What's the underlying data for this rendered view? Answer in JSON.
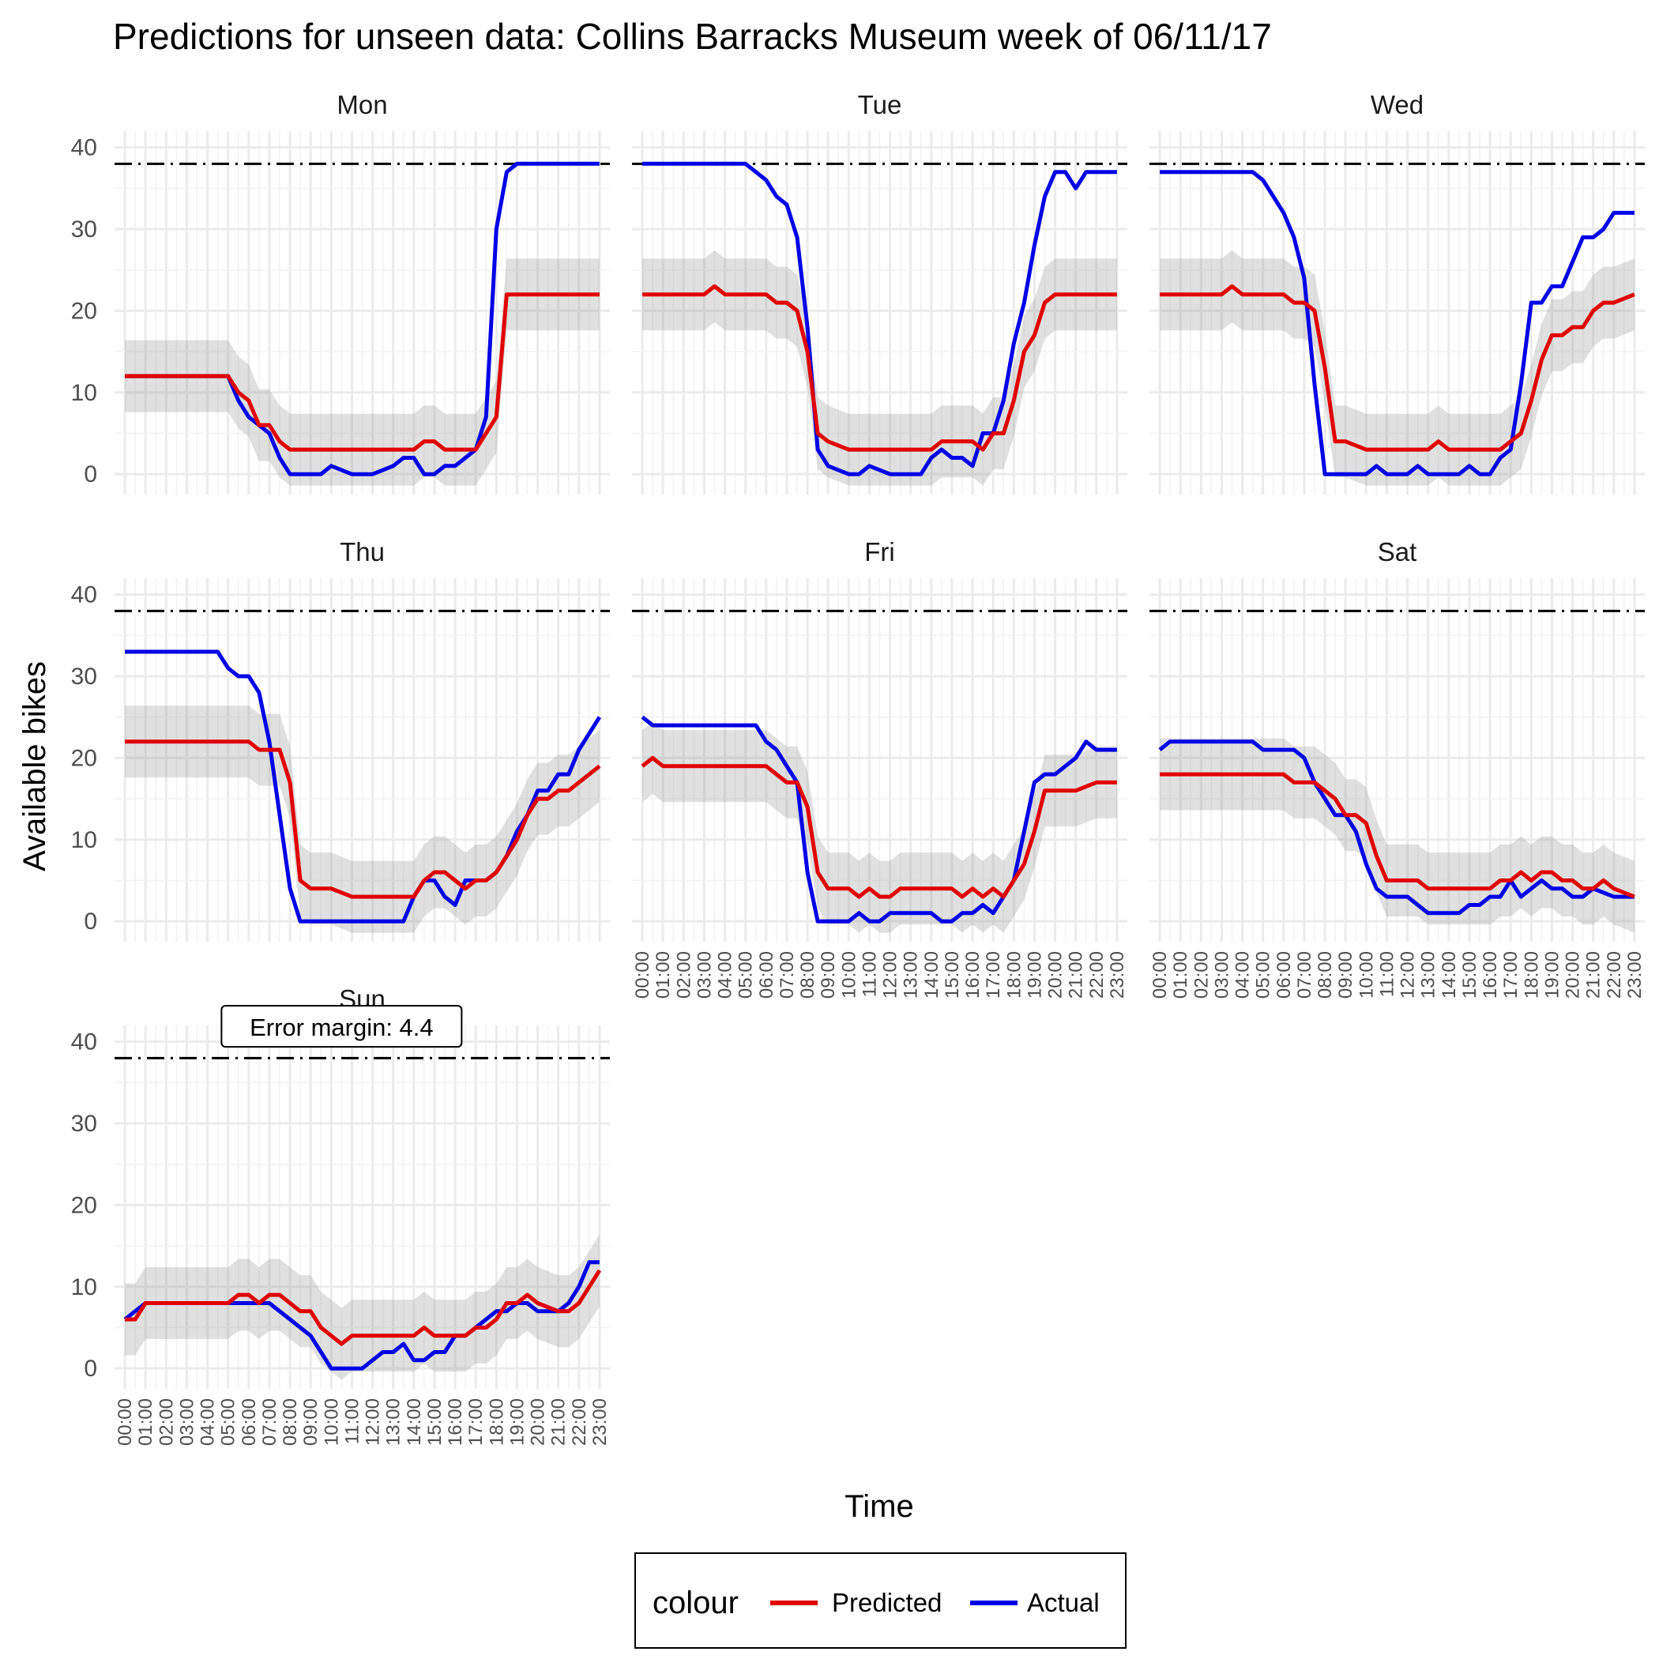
{
  "chart_data": {
    "type": "line",
    "title": "Predictions for unseen data: Collins Barracks Museum week of 06/11/17",
    "xlabel": "Time",
    "ylabel": "Available bikes",
    "ylim": [
      -2.5,
      42
    ],
    "yticks": [
      0,
      10,
      20,
      30,
      40
    ],
    "capacity": 38,
    "band_margin": 4.4,
    "grid": true,
    "legend": {
      "title": "colour",
      "position": "bottom",
      "items": [
        {
          "label": "Predicted",
          "color": "#e00000"
        },
        {
          "label": "Actual",
          "color": "#0000e6"
        }
      ]
    },
    "annotation": {
      "panel": "Sun",
      "text": "Error margin: 4.4"
    },
    "x_tick_labels": [
      "00:00",
      "01:00",
      "02:00",
      "03:00",
      "04:00",
      "05:00",
      "06:00",
      "07:00",
      "08:00",
      "09:00",
      "10:00",
      "11:00",
      "12:00",
      "13:00",
      "14:00",
      "15:00",
      "16:00",
      "17:00",
      "18:00",
      "19:00",
      "20:00",
      "21:00",
      "22:00",
      "23:00"
    ],
    "x_unit": "hour of day",
    "panels": [
      {
        "name": "Mon",
        "x_predicted": [
          0,
          5,
          5.5,
          6,
          6.5,
          7,
          7.5,
          8,
          9,
          10,
          11,
          12,
          13,
          14,
          14.5,
          15,
          15.5,
          16,
          17,
          18,
          18.5,
          19,
          20,
          21,
          22,
          23
        ],
        "predicted": [
          12,
          12,
          10,
          9,
          6,
          6,
          4,
          3,
          3,
          3,
          3,
          3,
          3,
          3,
          4,
          4,
          3,
          3,
          3,
          7,
          22,
          22,
          22,
          22,
          22,
          22
        ],
        "x_actual": [
          0,
          5,
          5.5,
          6,
          6.5,
          7,
          7.5,
          8,
          9,
          9.5,
          10,
          11,
          12,
          13,
          13.5,
          14,
          14.5,
          15,
          15.5,
          16,
          16.5,
          17,
          17.5,
          18,
          18.5,
          19,
          19.5,
          20,
          21,
          22,
          23
        ],
        "actual": [
          12,
          12,
          9,
          7,
          6,
          5,
          2,
          0,
          0,
          0,
          1,
          0,
          0,
          1,
          2,
          2,
          0,
          0,
          1,
          1,
          2,
          3,
          7,
          30,
          37,
          38,
          38,
          38,
          38,
          38,
          38
        ]
      },
      {
        "name": "Tue",
        "x_predicted": [
          0,
          3,
          3.5,
          4,
          5,
          6,
          6.5,
          7,
          7.5,
          8,
          8.5,
          9,
          10,
          11,
          12,
          13,
          14,
          14.5,
          15,
          16,
          16.5,
          17,
          17.5,
          18,
          18.5,
          19,
          19.5,
          20,
          21,
          22,
          23
        ],
        "predicted": [
          22,
          22,
          23,
          22,
          22,
          22,
          21,
          21,
          20,
          15,
          5,
          4,
          3,
          3,
          3,
          3,
          3,
          4,
          4,
          4,
          3,
          5,
          5,
          9,
          15,
          17,
          21,
          22,
          22,
          22,
          22
        ],
        "x_actual": [
          0,
          4,
          5,
          5.5,
          6,
          6.5,
          7,
          7.5,
          8,
          8.5,
          9,
          10,
          10.5,
          11,
          12,
          13,
          13.5,
          14,
          14.5,
          15,
          15.5,
          16,
          16.5,
          17,
          17.5,
          18,
          18.5,
          19,
          19.5,
          20,
          20.5,
          21,
          21.5,
          22,
          23
        ],
        "actual": [
          38,
          38,
          38,
          37,
          36,
          34,
          33,
          29,
          18,
          3,
          1,
          0,
          0,
          1,
          0,
          0,
          0,
          2,
          3,
          2,
          2,
          1,
          5,
          5,
          9,
          16,
          21,
          28,
          34,
          37,
          37,
          35,
          37,
          37,
          37
        ]
      },
      {
        "name": "Wed",
        "x_predicted": [
          0,
          3,
          3.5,
          4,
          5,
          6,
          6.5,
          7,
          7.5,
          8,
          8.5,
          9,
          10,
          10.5,
          11,
          12,
          13,
          13.5,
          14,
          15,
          16,
          16.5,
          17,
          17.5,
          18,
          18.5,
          19,
          19.5,
          20,
          20.5,
          21,
          21.5,
          22,
          23
        ],
        "predicted": [
          22,
          22,
          23,
          22,
          22,
          22,
          21,
          21,
          20,
          13,
          4,
          4,
          3,
          3,
          3,
          3,
          3,
          4,
          3,
          3,
          3,
          3,
          4,
          5,
          9,
          14,
          17,
          17,
          18,
          18,
          20,
          21,
          21,
          22
        ],
        "x_actual": [
          0,
          4,
          4.5,
          5,
          5.5,
          6,
          6.5,
          7,
          7.5,
          8,
          9,
          10,
          10.5,
          11,
          12,
          12.5,
          13,
          14,
          14.5,
          15,
          15.5,
          16,
          16.5,
          17,
          17.5,
          18,
          18.5,
          19,
          19.5,
          20,
          20.5,
          21,
          21.5,
          22,
          22.5,
          23
        ],
        "actual": [
          37,
          37,
          37,
          36,
          34,
          32,
          29,
          24,
          11,
          0,
          0,
          0,
          1,
          0,
          0,
          1,
          0,
          0,
          0,
          1,
          0,
          0,
          2,
          3,
          11,
          21,
          21,
          23,
          23,
          26,
          29,
          29,
          30,
          32,
          32,
          32
        ]
      },
      {
        "name": "Thu",
        "x_predicted": [
          0,
          5,
          6,
          6.5,
          7,
          7.5,
          8,
          8.5,
          9,
          10,
          11,
          12,
          13,
          13.5,
          14,
          14.5,
          15,
          15.5,
          16,
          16.5,
          17,
          17.5,
          18,
          18.5,
          19,
          19.5,
          20,
          20.5,
          21,
          21.5,
          22,
          22.5,
          23
        ],
        "predicted": [
          22,
          22,
          22,
          21,
          21,
          21,
          17,
          5,
          4,
          4,
          3,
          3,
          3,
          3,
          3,
          5,
          6,
          6,
          5,
          4,
          5,
          5,
          6,
          8,
          10,
          13,
          15,
          15,
          16,
          16,
          17,
          18,
          19
        ],
        "x_actual": [
          0,
          4,
          4.5,
          5,
          5.5,
          6,
          6.5,
          7,
          7.5,
          8,
          8.5,
          9,
          10,
          11,
          12,
          13,
          13.5,
          14,
          14.5,
          15,
          15.5,
          16,
          16.5,
          17,
          17.5,
          18,
          18.5,
          19,
          19.5,
          20,
          20.5,
          21,
          21.5,
          22,
          22.5,
          23
        ],
        "actual": [
          33,
          33,
          33,
          31,
          30,
          30,
          28,
          22,
          13,
          4,
          0,
          0,
          0,
          0,
          0,
          0,
          0,
          3,
          5,
          5,
          3,
          2,
          5,
          5,
          5,
          6,
          8,
          11,
          13,
          16,
          16,
          18,
          18,
          21,
          23,
          25
        ]
      },
      {
        "name": "Fri",
        "x_predicted": [
          0,
          0.5,
          1,
          2,
          3,
          4,
          5,
          5.5,
          6,
          6.5,
          7,
          7.5,
          8,
          8.5,
          9,
          10,
          10.5,
          11,
          11.5,
          12,
          12.5,
          13,
          14,
          15,
          15.5,
          16,
          16.5,
          17,
          17.5,
          18,
          18.5,
          19,
          19.5,
          20,
          21,
          22,
          23
        ],
        "predicted": [
          19,
          20,
          19,
          19,
          19,
          19,
          19,
          19,
          19,
          18,
          17,
          17,
          14,
          6,
          4,
          4,
          3,
          4,
          3,
          3,
          4,
          4,
          4,
          4,
          3,
          4,
          3,
          4,
          3,
          5,
          7,
          11,
          16,
          16,
          16,
          17,
          17
        ],
        "x_actual": [
          0,
          0.5,
          1,
          2,
          3,
          4,
          5,
          5.5,
          6,
          6.5,
          7,
          7.5,
          8,
          8.5,
          9,
          10,
          10.5,
          11,
          11.5,
          12,
          13,
          13.5,
          14,
          14.5,
          15,
          15.5,
          16,
          16.5,
          17,
          17.5,
          18,
          18.5,
          19,
          19.5,
          20,
          20.5,
          21,
          21.5,
          22,
          23
        ],
        "actual": [
          25,
          24,
          24,
          24,
          24,
          24,
          24,
          24,
          22,
          21,
          19,
          17,
          6,
          0,
          0,
          0,
          1,
          0,
          0,
          1,
          1,
          1,
          1,
          0,
          0,
          1,
          1,
          2,
          1,
          3,
          5,
          11,
          17,
          18,
          18,
          19,
          20,
          22,
          21,
          21
        ]
      },
      {
        "name": "Sat",
        "x_predicted": [
          0,
          1,
          2,
          3,
          4,
          5,
          5.5,
          6,
          6.5,
          7,
          7.5,
          8,
          8.5,
          9,
          9.5,
          10,
          10.5,
          11,
          12,
          12.5,
          13,
          14,
          15,
          15.5,
          16,
          16.5,
          17,
          17.5,
          18,
          18.5,
          19,
          19.5,
          20,
          20.5,
          21,
          21.5,
          22,
          23
        ],
        "predicted": [
          18,
          18,
          18,
          18,
          18,
          18,
          18,
          18,
          17,
          17,
          17,
          16,
          15,
          13,
          13,
          12,
          8,
          5,
          5,
          5,
          4,
          4,
          4,
          4,
          4,
          5,
          5,
          6,
          5,
          6,
          6,
          5,
          5,
          4,
          4,
          5,
          4,
          3
        ],
        "x_actual": [
          0,
          0.5,
          1,
          2,
          3,
          4,
          4.5,
          5,
          5.5,
          6,
          6.5,
          7,
          7.5,
          8,
          8.5,
          9,
          9.5,
          10,
          10.5,
          11,
          12,
          12.5,
          13,
          14,
          14.5,
          15,
          15.5,
          16,
          16.5,
          17,
          17.5,
          18,
          18.5,
          19,
          19.5,
          20,
          20.5,
          21,
          22,
          23
        ],
        "actual": [
          21,
          22,
          22,
          22,
          22,
          22,
          22,
          21,
          21,
          21,
          21,
          20,
          17,
          15,
          13,
          13,
          11,
          7,
          4,
          3,
          3,
          2,
          1,
          1,
          1,
          2,
          2,
          3,
          3,
          5,
          3,
          4,
          5,
          4,
          4,
          3,
          3,
          4,
          3,
          3
        ]
      },
      {
        "name": "Sun",
        "x_predicted": [
          0,
          0.5,
          1,
          2,
          3,
          4,
          5,
          5.5,
          6,
          6.5,
          7,
          7.5,
          8,
          8.5,
          9,
          9.5,
          10,
          10.5,
          11,
          12,
          13,
          13.5,
          14,
          14.5,
          15,
          16,
          16.5,
          17,
          17.5,
          18,
          18.5,
          19,
          19.5,
          20,
          21,
          21.5,
          22,
          22.5,
          23
        ],
        "predicted": [
          6,
          6,
          8,
          8,
          8,
          8,
          8,
          9,
          9,
          8,
          9,
          9,
          8,
          7,
          7,
          5,
          4,
          3,
          4,
          4,
          4,
          4,
          4,
          5,
          4,
          4,
          4,
          5,
          5,
          6,
          8,
          8,
          9,
          8,
          7,
          7,
          8,
          10,
          12
        ],
        "x_actual": [
          0,
          0.5,
          1,
          2,
          3,
          4,
          5,
          6,
          7,
          8,
          9,
          9.5,
          10,
          10.5,
          11,
          11.5,
          12,
          12.5,
          13,
          13.5,
          14,
          14.5,
          15,
          15.5,
          16,
          16.5,
          17,
          17.5,
          18,
          18.5,
          19,
          19.5,
          20,
          20.5,
          21,
          21.5,
          22,
          22.5,
          23
        ],
        "actual": [
          6,
          7,
          8,
          8,
          8,
          8,
          8,
          8,
          8,
          6,
          4,
          2,
          0,
          0,
          0,
          0,
          1,
          2,
          2,
          3,
          1,
          1,
          2,
          2,
          4,
          4,
          5,
          6,
          7,
          7,
          8,
          8,
          7,
          7,
          7,
          8,
          10,
          13,
          13
        ]
      }
    ]
  }
}
